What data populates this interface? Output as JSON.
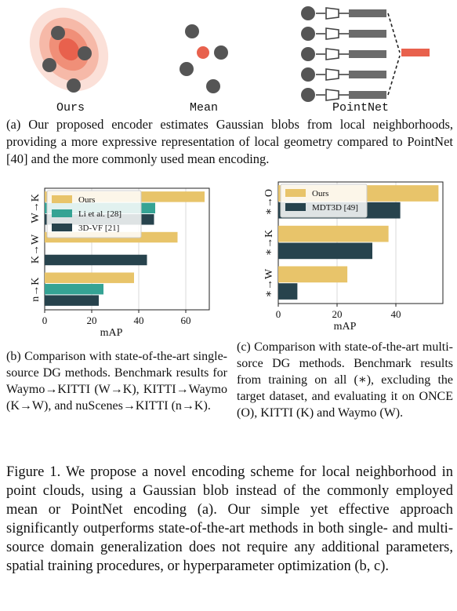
{
  "top_panel": {
    "labels": [
      "Ours",
      "Mean",
      "PointNet"
    ],
    "colors": {
      "blob": "#e8705a",
      "point": "#555555",
      "center": "#e8614d",
      "bar": "#6b6b6b"
    }
  },
  "caption_a": "(a) Our proposed encoder estimates Gaussian blobs from local neighborhoods, providing a more expressive representation of local geometry compared to PointNet [40] and the more commonly used mean encoding.",
  "caption_b": "(b) Comparison with state-of-the-art single-source DG methods. Benchmark results for Waymo→KITTI (W→K), KITTI→Waymo (K→W), and nuScenes→KITTI (n→K).",
  "caption_c": "(c) Comparison with state-of-the-art multi-sorce DG methods. Benchmark results from training on all (∗), excluding the target dataset, and evaluating it on ONCE (O), KITTI (K) and Waymo (W).",
  "figure_caption": "Figure 1. We propose a novel encoding scheme for local neighborhood in point clouds, using a Gaussian blob instead of the commonly employed mean or PointNet encoding (a). Our simple yet effective approach significantly outperforms state-of-the-art methods in both single- and multi-source domain generalization does not require any additional parameters, spatial training procedures, or hyperparameter optimization (b, c).",
  "chart_data": [
    {
      "type": "bar",
      "orientation": "horizontal",
      "categories": [
        "W→K",
        "K→W",
        "n→K"
      ],
      "series": [
        {
          "name": "Ours",
          "color": "#e8c46a",
          "values": [
            68,
            56.5,
            38
          ]
        },
        {
          "name": "Li et al. [28]",
          "color": "#35a394",
          "values": [
            47,
            null,
            25
          ]
        },
        {
          "name": "3D-VF [21]",
          "color": "#27434d",
          "values": [
            46.5,
            43.5,
            23
          ]
        }
      ],
      "xlabel": "mAP",
      "xlim": [
        0,
        70
      ],
      "xticks": [
        0,
        20,
        40,
        60
      ],
      "legend": "top-left",
      "grid": true
    },
    {
      "type": "bar",
      "orientation": "horizontal",
      "categories": [
        "∗→O",
        "∗→K",
        "∗→W"
      ],
      "series": [
        {
          "name": "Ours",
          "color": "#e8c46a",
          "values": [
            54.5,
            37.5,
            23.5
          ]
        },
        {
          "name": "MDT3D [49]",
          "color": "#27434d",
          "values": [
            41.5,
            32,
            6.5
          ]
        }
      ],
      "xlabel": "mAP",
      "xlim": [
        0,
        56
      ],
      "xticks": [
        0,
        20,
        40
      ],
      "legend": "top-left",
      "grid": true
    }
  ]
}
